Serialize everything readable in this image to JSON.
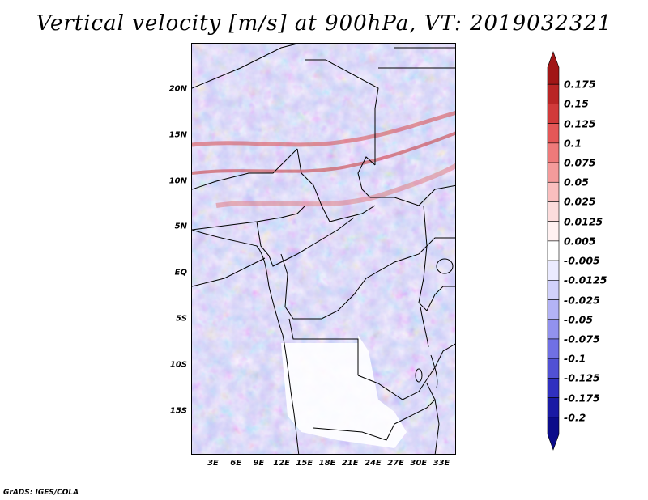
{
  "title": "Vertical velocity [m/s] at 900hPa, VT: 2019032321",
  "credit": "GrADS: IGES/COLA",
  "map": {
    "lat_labels": [
      "20N",
      "15N",
      "10N",
      "5N",
      "EQ",
      "5S",
      "10S",
      "15S"
    ],
    "lon_labels": [
      "3E",
      "6E",
      "9E",
      "12E",
      "15E",
      "18E",
      "21E",
      "24E",
      "27E",
      "30E",
      "33E"
    ],
    "lat_range": [
      -20,
      25
    ],
    "lon_range": [
      0,
      35
    ]
  },
  "colorbar": {
    "labels": [
      "0.175",
      "0.15",
      "0.125",
      "0.1",
      "0.075",
      "0.05",
      "0.025",
      "0.0125",
      "0.005",
      "-0.005",
      "-0.0125",
      "-0.025",
      "-0.05",
      "-0.075",
      "-0.1",
      "-0.125",
      "-0.175",
      "-0.2"
    ],
    "colors": [
      "#a11616",
      "#b92525",
      "#d13a3a",
      "#e45757",
      "#ee7a7a",
      "#f49b9b",
      "#f9bebe",
      "#fcdcdc",
      "#fff1f1",
      "#ffffff",
      "#ebebff",
      "#d1d1fb",
      "#b3b3f5",
      "#9292ee",
      "#7070e4",
      "#5151d4",
      "#3030c0",
      "#1a1aa4",
      "#0c0c8a"
    ]
  }
}
